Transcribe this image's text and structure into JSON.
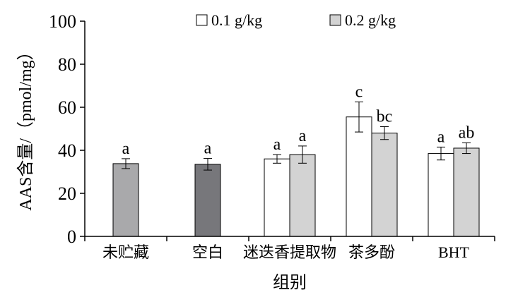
{
  "chart_data": {
    "type": "bar",
    "title": "",
    "xlabel": "组别",
    "ylabel": "AAS含量/（pmol/mg）",
    "ylim": [
      0,
      100
    ],
    "yticks": [
      0,
      20,
      40,
      60,
      80,
      100
    ],
    "grid": false,
    "legend_position": "top-center",
    "categories": [
      "未贮藏",
      "空白",
      "迷迭香提取物",
      "茶多酚",
      "BHT"
    ],
    "series": [
      {
        "name": "0.1 g/kg",
        "color": "#ffffff",
        "values": [
          null,
          null,
          36.0,
          55.5,
          38.5
        ],
        "errors": [
          null,
          null,
          2.0,
          7.0,
          3.0
        ],
        "labels": [
          null,
          null,
          "a",
          "c",
          "a"
        ]
      },
      {
        "name": "0.2 g/kg",
        "color": "#d3d3d3",
        "values": [
          null,
          null,
          38.0,
          48.0,
          41.0
        ],
        "errors": [
          null,
          null,
          4.0,
          3.0,
          2.5
        ],
        "labels": [
          null,
          null,
          "a",
          "bc",
          "ab"
        ]
      }
    ],
    "single_bars": [
      {
        "category": "未贮藏",
        "value": 33.8,
        "error": 2.3,
        "label": "a",
        "color": "#a9a9ab"
      },
      {
        "category": "空白",
        "value": 33.5,
        "error": 2.7,
        "label": "a",
        "color": "#77777b"
      }
    ]
  }
}
